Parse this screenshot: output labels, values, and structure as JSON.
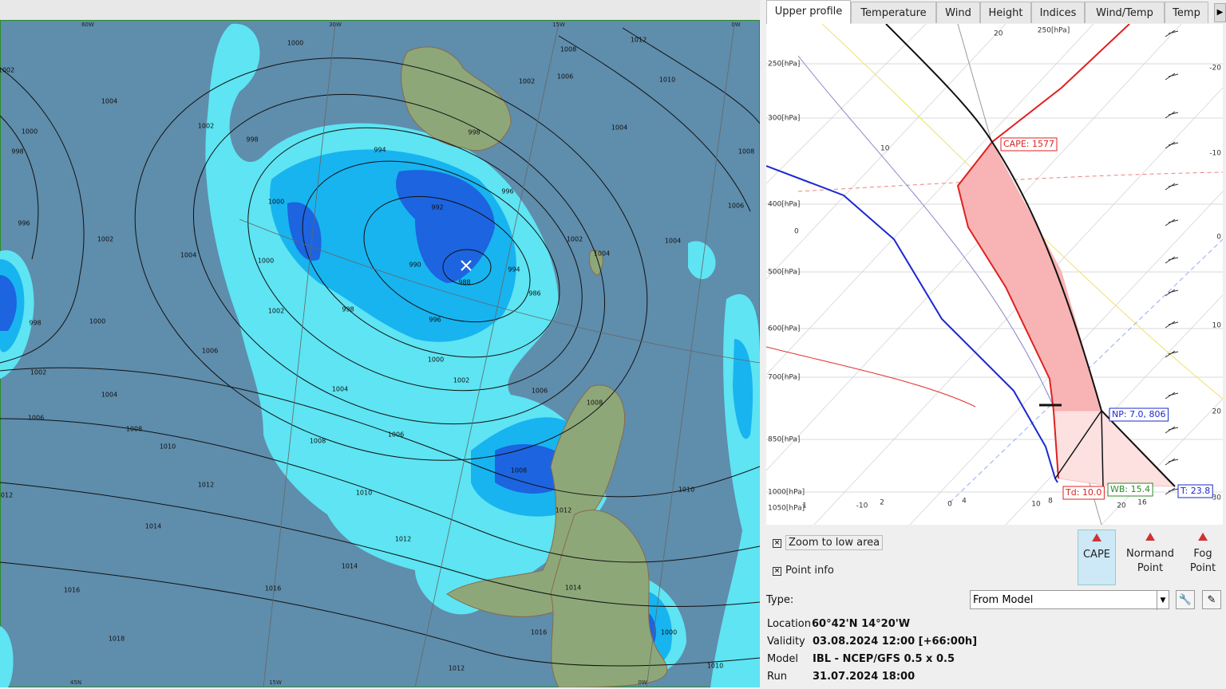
{
  "tabs": [
    "Upper profile",
    "Temperature",
    "Wind",
    "Height",
    "Indices",
    "Wind/Temp",
    "Temp"
  ],
  "map": {
    "graticule_labels": [
      "60W",
      "30W",
      "15W",
      "0W",
      "45N",
      "15W",
      "0W"
    ],
    "isobar_labels": [
      "1000",
      "1002",
      "1004",
      "1000",
      "998",
      "996",
      "1002",
      "1004",
      "1000",
      "998",
      "1002",
      "1004",
      "1006",
      "1006",
      "1008",
      "1010",
      "1012",
      "1012",
      "1014",
      "1016",
      "1018",
      "1016",
      "1014",
      "1012",
      "1010",
      "1008",
      "1006",
      "1004",
      "1002",
      "1000",
      "998",
      "996",
      "994",
      "992",
      "990",
      "988",
      "986",
      "994",
      "996",
      "998",
      "1000",
      "1000",
      "1002",
      "998",
      "1002",
      "1002",
      "1004",
      "1006",
      "1008",
      "1010",
      "1012",
      "1008",
      "1006",
      "1004",
      "1002",
      "1004",
      "1006",
      "1008",
      "1008",
      "1010",
      "1012",
      "1014",
      "1016",
      "1012",
      "1010",
      "1000"
    ]
  },
  "sounding": {
    "pressure_labels": [
      "250[hPa]",
      "250[hPa]",
      "300[hPa]",
      "400[hPa]",
      "500[hPa]",
      "600[hPa]",
      "700[hPa]",
      "850[hPa]",
      "1000[hPa]",
      "1050[hPa]"
    ],
    "bottom_labels": [
      "1",
      "-10",
      "2",
      "0",
      "4",
      "10",
      "8",
      "20",
      "16"
    ],
    "right_labels": [
      "-20",
      "-10",
      "0",
      "10",
      "20",
      "30"
    ],
    "inner_labels": [
      "20",
      "10",
      "0"
    ],
    "annotations": {
      "cape": "CAPE: 1577",
      "np": "NP: 7.0, 806",
      "td": "Td: 10.0",
      "wb": "WB: 15.4",
      "t": "T: 23.8"
    }
  },
  "checkboxes": [
    "Zoom to low area",
    "Point info"
  ],
  "buttons": [
    {
      "lines": [
        "CAPE"
      ]
    },
    {
      "lines": [
        "Normand",
        "Point"
      ]
    },
    {
      "lines": [
        "Fog",
        "Point"
      ]
    }
  ],
  "type": {
    "label": "Type:",
    "value": "From Model"
  },
  "info": [
    [
      "Location",
      "60°42'N 14°20'W"
    ],
    [
      "Validity",
      "03.08.2024 12:00 [+66:00h]"
    ],
    [
      "Model",
      "IBL - NCEP/GFS 0.5 x 0.5"
    ],
    [
      "Run",
      "31.07.2024 18:00"
    ]
  ]
}
